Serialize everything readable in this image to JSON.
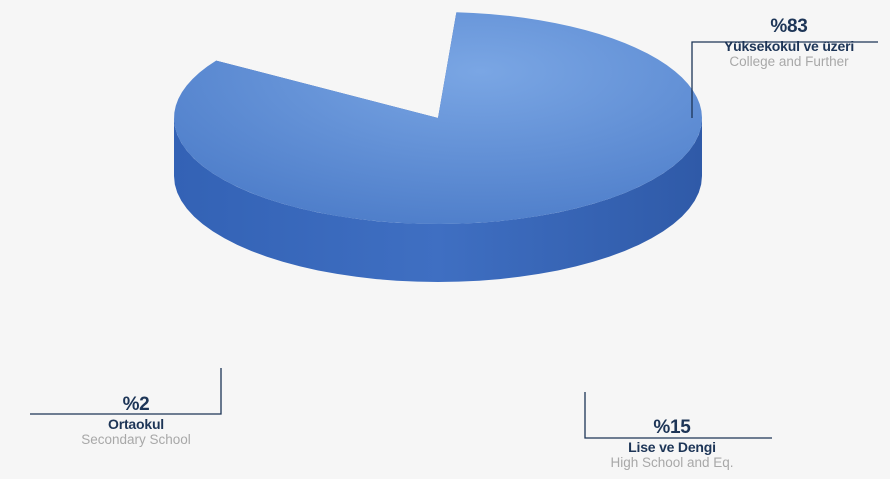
{
  "chart_data": {
    "type": "pie",
    "style": "3d-exploded",
    "slices": [
      {
        "value": 83,
        "value_label": "%83",
        "label_tr": "Yüksekokul ve üzeri",
        "label_en": "College and Further",
        "color": "#5b8cd6"
      },
      {
        "value": 15,
        "value_label": "%15",
        "label_tr": "Lise ve Dengi",
        "label_en": "High School and Eq.",
        "color": "#ec3c62"
      },
      {
        "value": 2,
        "value_label": "%2",
        "label_tr": "Ortaokul",
        "label_en": "Secondary School",
        "color": "#e2e84c"
      }
    ]
  },
  "colors": {
    "background": "#f6f6f6",
    "leader_line": "#1d3557",
    "label_primary": "#1d3557",
    "label_secondary": "#a8a8a8"
  }
}
